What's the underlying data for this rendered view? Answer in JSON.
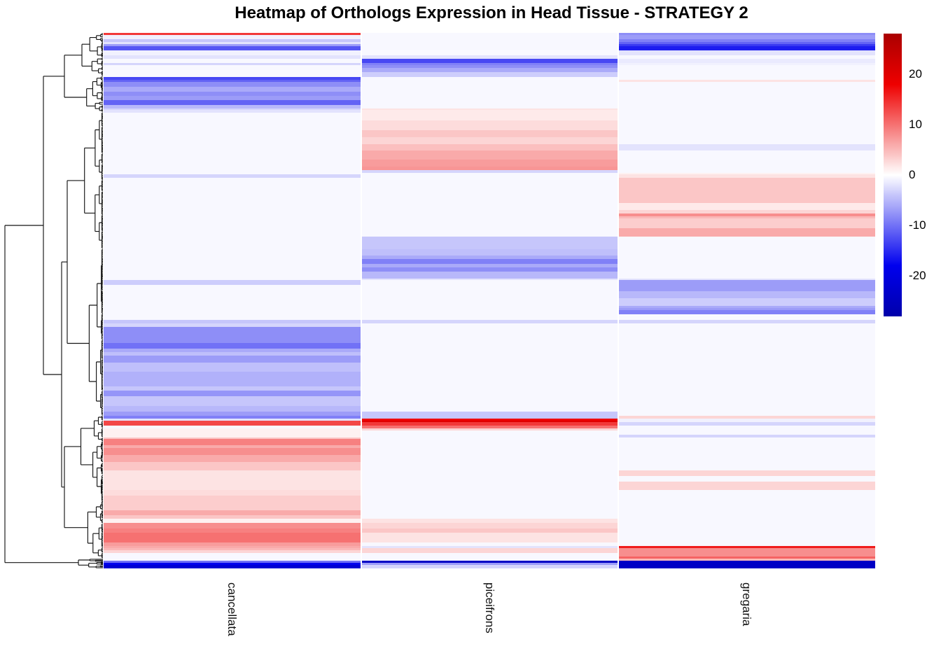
{
  "title": "Heatmap of Orthologs Expression in Head Tissue - STRATEGY 2",
  "columns": [
    "cancellata",
    "piceifrons",
    "gregaria"
  ],
  "legend": {
    "ticks": [
      20,
      10,
      0,
      -10,
      -20
    ],
    "vmin": -28,
    "vmax": 28
  },
  "colors": {
    "zero": "#ffffff",
    "positive": "#ee0000",
    "positive_extreme": "#aa0000",
    "negative": "#0000ee",
    "negative_extreme": "#0000aa",
    "dendrogram_line": "#141414"
  },
  "chart_data": {
    "type": "heatmap",
    "title": "Heatmap of Orthologs Expression in Head Tissue - STRATEGY 2",
    "columns": [
      "cancellata",
      "piceifrons",
      "gregaria"
    ],
    "colorbar_range": [
      -28,
      28
    ],
    "colorbar_ticks": [
      20,
      10,
      0,
      -10,
      -20
    ],
    "row_dendrogram": true,
    "legend_position": "right",
    "rows_note": "Each row: [band_height_px, cancellata, piceifrons, gregaria] expression values estimated from color scale",
    "rows": [
      [
        3,
        14,
        -0.5,
        -8
      ],
      [
        6,
        -1,
        -0.5,
        -7
      ],
      [
        4,
        -4,
        -0.5,
        -9
      ],
      [
        3,
        -2,
        -0.5,
        -11
      ],
      [
        3,
        -7,
        -0.5,
        -14
      ],
      [
        6,
        -12,
        -0.5,
        -16
      ],
      [
        7,
        -1,
        -0.5,
        -2
      ],
      [
        5,
        -2,
        -2,
        -0.5
      ],
      [
        6,
        -0.5,
        -13,
        -1.5
      ],
      [
        3,
        -3,
        -9,
        -1
      ],
      [
        4,
        -0.5,
        -8,
        -0.5
      ],
      [
        6,
        -0.5,
        -6,
        -0.5
      ],
      [
        7,
        -0.5,
        -3.5,
        -0.5
      ],
      [
        4,
        -13,
        -0.5,
        -0.5
      ],
      [
        3,
        -11,
        -0.5,
        2
      ],
      [
        7,
        -8,
        -0.5,
        -0.5
      ],
      [
        7,
        -6,
        -0.5,
        -0.5
      ],
      [
        6,
        -8,
        -0.5,
        -0.5
      ],
      [
        6,
        -7,
        -0.5,
        -0.5
      ],
      [
        7,
        -11,
        -0.5,
        -0.5
      ],
      [
        5,
        -5,
        -0.5,
        -0.5
      ],
      [
        2,
        -3,
        2,
        -0.5
      ],
      [
        4,
        -2,
        1.5,
        -0.5
      ],
      [
        11,
        -0.5,
        1.5,
        -0.5
      ],
      [
        14,
        -0.5,
        2.5,
        -0.5
      ],
      [
        10,
        -0.5,
        4,
        -0.5
      ],
      [
        10,
        -0.5,
        3,
        -0.5
      ],
      [
        9,
        -0.5,
        4.5,
        -2
      ],
      [
        13,
        -0.5,
        6,
        -0.5
      ],
      [
        10,
        -0.5,
        7,
        -0.5
      ],
      [
        5,
        -0.5,
        7.5,
        -0.5
      ],
      [
        4,
        -0.5,
        -3,
        -0.5
      ],
      [
        2,
        -0.5,
        -0.5,
        1
      ],
      [
        5,
        -3,
        -0.5,
        2
      ],
      [
        36,
        -0.5,
        -0.5,
        4
      ],
      [
        10,
        -0.5,
        -0.5,
        1.5
      ],
      [
        5,
        -0.5,
        -0.5,
        3
      ],
      [
        4,
        -0.5,
        -0.5,
        8
      ],
      [
        3,
        -0.5,
        -0.5,
        5
      ],
      [
        14,
        -0.5,
        -0.5,
        3.5
      ],
      [
        12,
        -0.5,
        -0.5,
        6
      ],
      [
        18,
        -0.5,
        -4,
        -0.5
      ],
      [
        9,
        -0.5,
        -4.5,
        -0.5
      ],
      [
        5,
        -0.5,
        -6,
        -0.5
      ],
      [
        7,
        -0.5,
        -9,
        -0.5
      ],
      [
        5,
        -0.5,
        -6,
        -0.5
      ],
      [
        6,
        -0.5,
        -8,
        -0.5
      ],
      [
        10,
        -0.5,
        -5,
        -0.5
      ],
      [
        2,
        -0.5,
        -2,
        -2
      ],
      [
        7,
        -3.5,
        -0.5,
        -7
      ],
      [
        9,
        -0.5,
        -0.5,
        -7
      ],
      [
        10,
        -0.5,
        -0.5,
        -5
      ],
      [
        11,
        -0.5,
        -0.5,
        -3.5
      ],
      [
        3,
        -0.5,
        -0.5,
        -6
      ],
      [
        3,
        -0.5,
        -0.5,
        -7
      ],
      [
        6,
        -0.5,
        -0.5,
        -9
      ],
      [
        8,
        -0.5,
        -0.5,
        -0.5
      ],
      [
        5,
        -4,
        -3,
        -3
      ],
      [
        5,
        -3,
        -0.5,
        -0.5
      ],
      [
        23,
        -8,
        -0.5,
        -0.5
      ],
      [
        8,
        -10,
        -0.5,
        -0.5
      ],
      [
        5,
        -6,
        -0.5,
        -0.5
      ],
      [
        5,
        -4.5,
        -0.5,
        -0.5
      ],
      [
        10,
        -7,
        -0.5,
        -0.5
      ],
      [
        13,
        -4.5,
        -0.5,
        -0.5
      ],
      [
        21,
        -5.5,
        -0.5,
        -0.5
      ],
      [
        6,
        -4,
        -0.5,
        -0.5
      ],
      [
        8,
        -7.5,
        -0.5,
        -0.5
      ],
      [
        14,
        -4,
        -0.5,
        -0.5
      ],
      [
        8,
        -5,
        -0.5,
        -0.5
      ],
      [
        6,
        -7,
        -4,
        -0.5
      ],
      [
        4,
        -9,
        -4,
        3
      ],
      [
        3,
        -2,
        18,
        -1
      ],
      [
        2,
        13,
        20,
        -1
      ],
      [
        5,
        13,
        14,
        -3
      ],
      [
        4,
        -0.5,
        10,
        -0.5
      ],
      [
        3,
        1,
        3,
        -0.5
      ],
      [
        6,
        1,
        -0.5,
        -0.5
      ],
      [
        4,
        1,
        -0.5,
        -3
      ],
      [
        2,
        4,
        -0.5,
        -0.5
      ],
      [
        9,
        9,
        -0.5,
        -0.5
      ],
      [
        4,
        6,
        -0.5,
        -0.5
      ],
      [
        10,
        8,
        -0.5,
        -0.5
      ],
      [
        10,
        6,
        -0.5,
        -0.5
      ],
      [
        12,
        4,
        -0.5,
        -0.5
      ],
      [
        8,
        2,
        -0.5,
        3
      ],
      [
        8,
        2,
        -0.5,
        -0.5
      ],
      [
        12,
        2,
        -0.5,
        3
      ],
      [
        8,
        2.5,
        -0.5,
        -0.5
      ],
      [
        21,
        3.5,
        -0.5,
        -0.5
      ],
      [
        7,
        6,
        -0.5,
        -0.5
      ],
      [
        5,
        4,
        -0.5,
        -0.5
      ],
      [
        6,
        1,
        2,
        -0.5
      ],
      [
        8,
        8,
        3,
        -0.5
      ],
      [
        6,
        9,
        4,
        -0.5
      ],
      [
        14,
        10,
        2,
        -0.5
      ],
      [
        5,
        7,
        -0.5,
        -0.5
      ],
      [
        3,
        6,
        -2,
        16
      ],
      [
        3,
        5,
        3,
        8
      ],
      [
        4,
        3,
        3,
        8
      ],
      [
        5,
        -0.5,
        -0.5,
        8
      ],
      [
        3,
        -0.5,
        -0.5,
        11
      ],
      [
        3,
        -0.5,
        -0.5,
        5
      ],
      [
        3,
        -10,
        -24,
        -24
      ],
      [
        3,
        -18,
        -7,
        -24
      ],
      [
        5,
        -22,
        -3,
        -24
      ]
    ]
  }
}
